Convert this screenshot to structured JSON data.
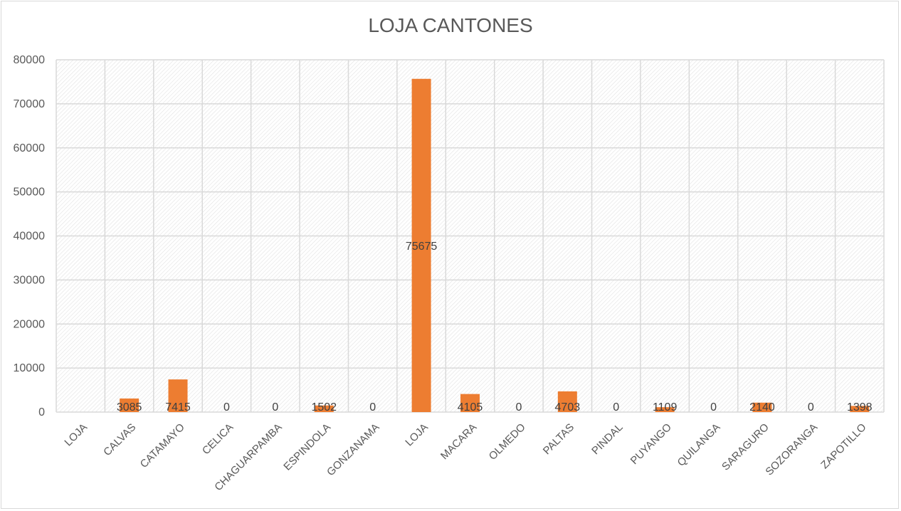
{
  "chart_data": {
    "type": "bar",
    "title": "LOJA CANTONES",
    "xlabel": "",
    "ylabel": "",
    "ylim": [
      0,
      80000
    ],
    "yticks": [
      0,
      10000,
      20000,
      30000,
      40000,
      50000,
      60000,
      70000,
      80000
    ],
    "grid": true,
    "legend": "none",
    "categories": [
      "LOJA",
      "CALVAS",
      "CATAMAYO",
      "CELICA",
      "CHAGUARPAMBA",
      "ESPINDOLA",
      "GONZANAMA",
      "LOJA",
      "MACARA",
      "OLMEDO",
      "PALTAS",
      "PINDAL",
      "PUYANGO",
      "QUILANGA",
      "SARAGURO",
      "SOZORANGA",
      "ZAPOTILLO"
    ],
    "values": [
      null,
      3085,
      7415,
      0,
      0,
      1502,
      0,
      75675,
      4105,
      0,
      4703,
      0,
      1109,
      0,
      2140,
      0,
      1398
    ],
    "data_labels": [
      "",
      "3085",
      "7415",
      "0",
      "0",
      "1502",
      "0",
      "75675",
      "4105",
      "0",
      "4703",
      "0",
      "1109",
      "0",
      "2140",
      "0",
      "1398"
    ],
    "bar_color": "#ed7d31",
    "grid_color": "#d9d9d9"
  }
}
